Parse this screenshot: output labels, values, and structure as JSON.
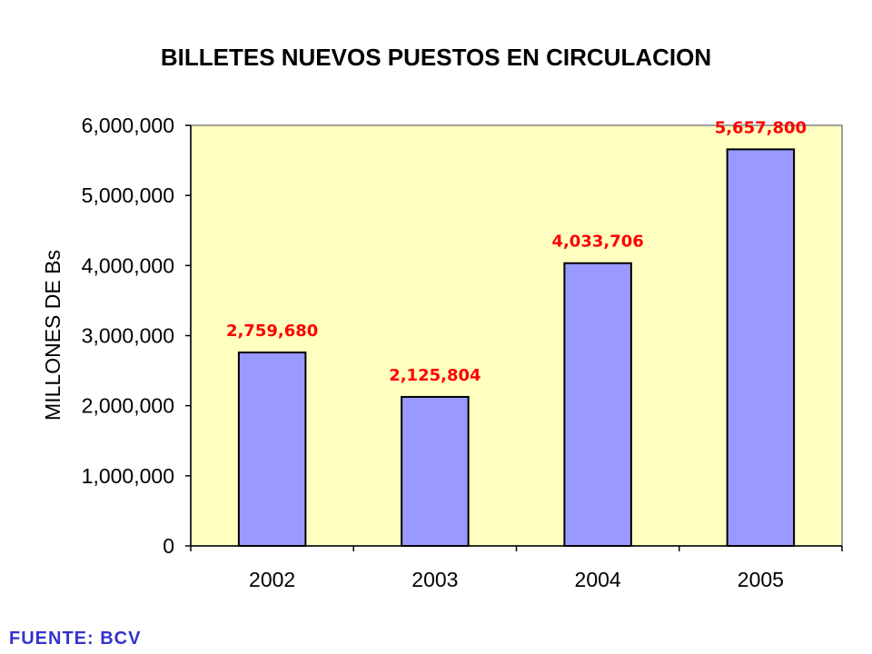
{
  "chart_data": {
    "type": "bar",
    "title": "BILLETES NUEVOS PUESTOS EN CIRCULACION",
    "xlabel": "",
    "ylabel": "MILLONES DE Bs",
    "categories": [
      "2002",
      "2003",
      "2004",
      "2005"
    ],
    "values": [
      2759680,
      2125804,
      4033706,
      5657800
    ],
    "data_labels": [
      "2,759,680",
      "2,125,804",
      "4,033,706",
      "5,657,800"
    ],
    "ylim": [
      0,
      6000000
    ],
    "yticks": [
      0,
      1000000,
      2000000,
      3000000,
      4000000,
      5000000,
      6000000
    ],
    "ytick_labels": [
      "0",
      "1,000,000",
      "2,000,000",
      "3,000,000",
      "4,000,000",
      "5,000,000",
      "6,000,000"
    ],
    "grid": false,
    "legend": "none",
    "colors": {
      "bar_fill": "#9999ff",
      "bar_stroke": "#000000",
      "plot_background": "#ffffc0",
      "data_label": "#ff0000",
      "source_text": "#3333cc"
    }
  },
  "source_note": "FUENTE: BCV"
}
